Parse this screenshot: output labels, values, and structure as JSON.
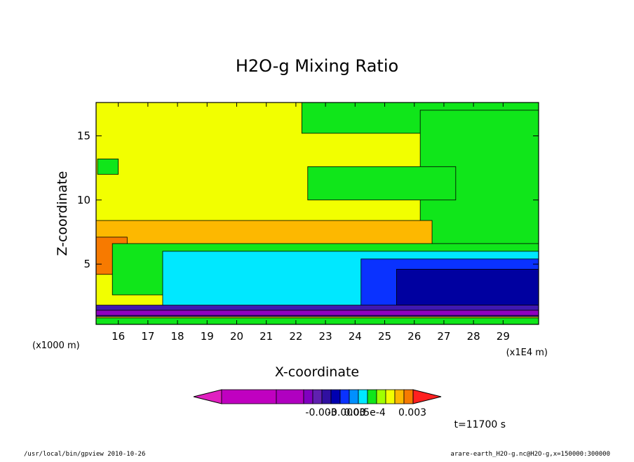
{
  "chart_data": {
    "type": "heatmap",
    "title": "H2O-g Mixing Ratio",
    "xlabel": "X-coordinate",
    "ylabel": "Z-coordinate",
    "x_unit_label": "(x1E4 m)",
    "y_unit_label": "(x1000 m)",
    "xlim": [
      15.25,
      30.2
    ],
    "ylim": [
      0.3,
      17.6
    ],
    "x_ticks": [
      "16",
      "17",
      "18",
      "19",
      "20",
      "21",
      "22",
      "23",
      "24",
      "25",
      "26",
      "27",
      "28",
      "29"
    ],
    "x_tick_values": [
      16,
      17,
      18,
      19,
      20,
      21,
      22,
      23,
      24,
      25,
      26,
      27,
      28,
      29
    ],
    "y_ticks": [
      "5",
      "10",
      "15"
    ],
    "y_tick_values": [
      5,
      10,
      15
    ],
    "regions": [
      {
        "level": "yellow",
        "color": "#f2ff00",
        "x0": 15.25,
        "x1": 30.2,
        "y0": 0.3,
        "y1": 17.6
      },
      {
        "level": "green-top",
        "color": "#10e61a",
        "x0": 22.2,
        "x1": 30.2,
        "y0": 15.2,
        "y1": 17.6
      },
      {
        "level": "green-right",
        "color": "#10e61a",
        "x0": 26.2,
        "x1": 30.2,
        "y0": 6.6,
        "y1": 17.0
      },
      {
        "level": "green-mid",
        "color": "#10e61a",
        "x0": 22.4,
        "x1": 27.4,
        "y0": 10.0,
        "y1": 12.6
      },
      {
        "level": "green-left",
        "color": "#10e61a",
        "x0": 15.3,
        "x1": 16.0,
        "y0": 12.0,
        "y1": 13.2
      },
      {
        "level": "orange-light",
        "color": "#fdb800",
        "x0": 15.25,
        "x1": 26.6,
        "y0": 5.6,
        "y1": 8.4
      },
      {
        "level": "orange",
        "color": "#f77a00",
        "x0": 15.25,
        "x1": 16.3,
        "y0": 4.2,
        "y1": 7.1
      },
      {
        "level": "green-band",
        "color": "#10e61a",
        "x0": 15.8,
        "x1": 30.2,
        "y0": 2.6,
        "y1": 6.6
      },
      {
        "level": "cyan",
        "color": "#00e8ff",
        "x0": 17.5,
        "x1": 30.2,
        "y0": 1.6,
        "y1": 6.0
      },
      {
        "level": "blue",
        "color": "#0a32ff",
        "x0": 24.2,
        "x1": 30.2,
        "y0": 1.3,
        "y1": 5.4
      },
      {
        "level": "navy",
        "color": "#0000a0",
        "x0": 25.4,
        "x1": 30.2,
        "y0": 1.3,
        "y1": 4.6
      },
      {
        "level": "purple-layer",
        "color": "#4018b0",
        "x0": 15.25,
        "x1": 30.2,
        "y0": 0.9,
        "y1": 1.8
      },
      {
        "level": "magenta-layer",
        "color": "#9000c0",
        "x0": 15.25,
        "x1": 30.2,
        "y0": 1.0,
        "y1": 1.4
      },
      {
        "level": "surface",
        "color": "#10e61a",
        "x0": 15.25,
        "x1": 30.2,
        "y0": 0.3,
        "y1": 0.8
      }
    ],
    "colorbar": {
      "colors": [
        "#e020c0",
        "#c000c0",
        "#b000c0",
        "#8000c0",
        "#6020b0",
        "#3010a0",
        "#0000b0",
        "#0a32ff",
        "#0090ff",
        "#00e8ff",
        "#10e61a",
        "#a0ff00",
        "#f2ff00",
        "#fdb800",
        "#f77a00",
        "#ff2020"
      ],
      "labels": [
        "-0.003",
        "-0.0003",
        "0.00",
        "5e-4",
        "0.003"
      ]
    },
    "annotation": "t=11700 s"
  },
  "footer": {
    "left": "/usr/local/bin/gpview  2010-10-26",
    "right": "arare-earth_H2O-g.nc@H2O-g,x=150000:300000"
  }
}
